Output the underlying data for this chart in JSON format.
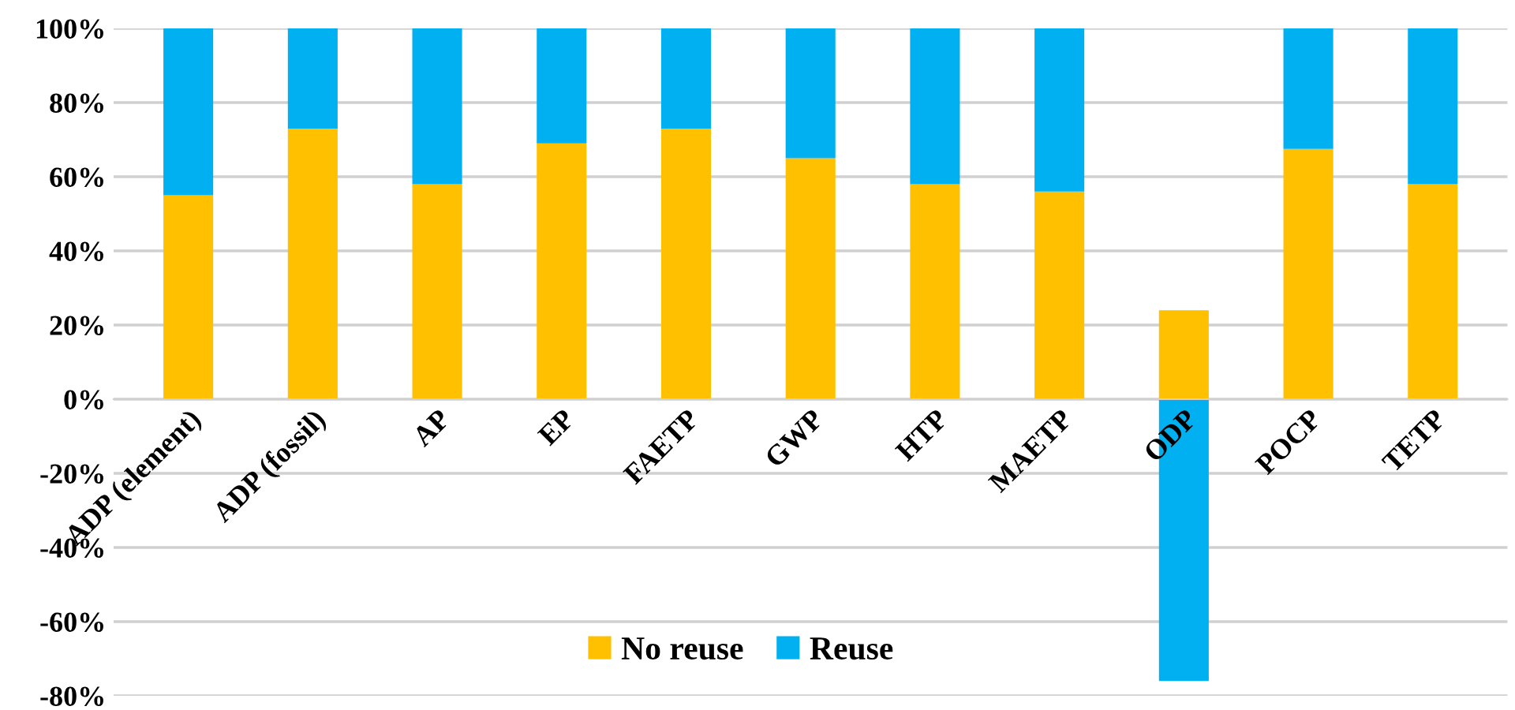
{
  "chart_data": {
    "type": "bar",
    "stacked": true,
    "categories": [
      "ADP (element)",
      "ADP (fossil)",
      "AP",
      "EP",
      "FAETP",
      "GWP",
      "HTP",
      "MAETP",
      "ODP",
      "POCP",
      "TETP"
    ],
    "series": [
      {
        "name": "No reuse",
        "color": "#ffc000",
        "values": [
          55,
          73,
          58,
          69,
          73,
          65,
          58,
          56,
          24,
          67.5,
          58
        ]
      },
      {
        "name": "Reuse",
        "color": "#00b0f0",
        "values": [
          45,
          27,
          42,
          31,
          27,
          35,
          42,
          44,
          -76,
          32.5,
          42
        ]
      }
    ],
    "ylim": [
      -80,
      100
    ],
    "yticks": [
      {
        "value": -80,
        "label": "-80%"
      },
      {
        "value": -60,
        "label": "-60%"
      },
      {
        "value": -40,
        "label": "-40%"
      },
      {
        "value": -20,
        "label": "-20%"
      },
      {
        "value": 0,
        "label": "0%"
      },
      {
        "value": 20,
        "label": "20%"
      },
      {
        "value": 40,
        "label": "40%"
      },
      {
        "value": 60,
        "label": "60%"
      },
      {
        "value": 80,
        "label": "80%"
      },
      {
        "value": 100,
        "label": "100%"
      }
    ],
    "grid": "y",
    "legend": "bottom"
  }
}
